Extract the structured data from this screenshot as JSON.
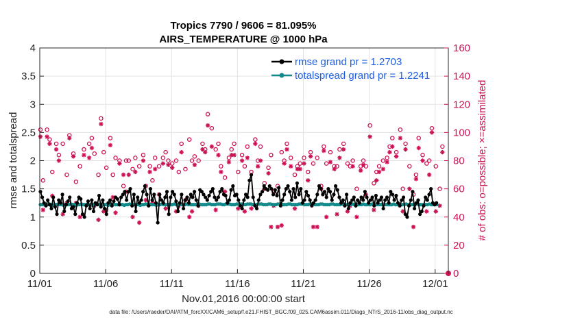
{
  "chart_data": {
    "type": "line",
    "title_line1": "Tropics 7790 / 9606 = 81.095%",
    "title_line2": "AIRS_TEMPERATURE @ 1000 hPa",
    "xlabel": "Nov.01,2016 00:00:00 start",
    "ylabel_left": "rmse and totalspread",
    "ylabel_right": "# of obs: o=possible; ×=assimilated",
    "xlim": [
      0,
      31
    ],
    "ylim_left": [
      0,
      4
    ],
    "ylim_right": [
      0,
      160
    ],
    "x_ticks": [
      0,
      5,
      10,
      15,
      20,
      25,
      30
    ],
    "x_tick_labels": [
      "11/01",
      "11/06",
      "11/11",
      "11/16",
      "11/21",
      "11/26",
      "12/01"
    ],
    "y_left_tick_labels": [
      "0",
      "0.5",
      "1",
      "1.5",
      "2",
      "2.5",
      "3",
      "3.5",
      "4"
    ],
    "y_right_tick_labels": [
      "0",
      "20",
      "40",
      "60",
      "80",
      "100",
      "120",
      "140",
      "160"
    ],
    "legend": [
      {
        "name": "rmse grand pr = 1.2703",
        "color": "#000000"
      },
      {
        "name": "totalspread grand pr = 1.2241",
        "color": "#138a8a"
      }
    ],
    "footer": "data file: /Users/raeder/DAI/ATM_forcXX/CAM6_setup/f.e21.FHIST_BGC.f09_025.CAM6assim.011/Diags_NTrS_2016-11/obs_diag_output.nc",
    "colors": {
      "rmse": "#000000",
      "spread": "#138a8a",
      "obs": "#cc1155",
      "legend_text": "#1f5fe0"
    },
    "rmse_series": [
      1.45,
      1.35,
      1.25,
      1.2,
      1.3,
      1.22,
      1.15,
      1.35,
      1.18,
      1.05,
      1.3,
      1.25,
      1.4,
      1.1,
      1.22,
      1.28,
      1.35,
      1.15,
      1.18,
      1.05,
      1.25,
      1.35,
      1.32,
      1.05,
      1.0,
      1.2,
      1.28,
      1.15,
      1.3,
      1.1,
      1.25,
      1.22,
      1.38,
      1.18,
      1.3,
      1.15,
      1.05,
      1.25,
      1.3,
      1.2,
      1.28,
      1.35,
      1.32,
      1.22,
      1.35,
      1.4,
      1.45,
      1.3,
      1.45,
      1.5,
      1.2,
      1.4,
      1.1,
      1.35,
      1.25,
      1.3,
      1.45,
      1.55,
      1.4,
      1.2,
      1.5,
      1.3,
      1.4,
      1.25,
      0.9,
      1.4,
      1.3,
      1.25,
      1.35,
      1.45,
      1.05,
      1.35,
      1.45,
      1.4,
      1.28,
      1.1,
      1.25,
      1.4,
      1.15,
      1.3,
      1.35,
      1.25,
      1.4,
      1.35,
      1.45,
      1.3,
      1.2,
      1.48,
      1.45,
      1.4,
      1.35,
      1.3,
      1.38,
      1.45,
      1.5,
      1.35,
      1.3,
      1.35,
      1.45,
      1.5,
      1.4,
      1.38,
      1.25,
      1.3,
      1.48,
      1.55,
      1.38,
      1.4,
      1.3,
      1.2,
      1.15,
      1.3,
      1.4,
      1.35,
      1.65,
      1.75,
      1.35,
      1.2,
      1.15,
      1.3,
      1.4,
      1.45,
      1.55,
      1.5,
      1.48,
      1.55,
      1.5,
      1.4,
      1.48,
      1.38,
      1.52,
      1.2,
      1.3,
      1.4,
      1.5,
      1.55,
      1.45,
      1.3,
      1.5,
      1.35,
      1.6,
      1.4,
      1.5,
      1.25,
      1.3,
      1.45,
      1.38,
      1.3,
      1.2,
      1.25,
      1.3,
      1.4,
      1.55,
      1.5,
      1.4,
      1.45,
      1.35,
      1.5,
      1.45,
      1.3,
      1.4,
      1.55,
      1.48,
      1.35,
      1.25,
      1.3,
      1.2,
      1.4,
      1.15,
      1.25,
      1.3,
      1.35,
      1.2,
      1.3,
      1.25,
      1.35,
      1.3,
      1.45,
      1.35,
      1.25,
      1.3,
      1.35,
      1.2,
      1.38,
      1.25,
      1.3,
      1.35,
      1.15,
      1.3,
      1.35,
      1.25,
      1.45,
      1.4,
      1.3,
      1.38,
      1.25,
      1.2,
      1.3,
      1.35,
      1.05,
      1.0,
      1.2,
      1.3,
      1.45,
      1.15,
      1.25,
      1.3,
      1.05,
      1.1,
      1.2,
      1.35,
      1.3,
      1.4,
      1.5,
      1.25,
      1.22,
      1.25
    ],
    "spread_series": [
      1.22,
      1.22,
      1.22,
      1.22,
      1.22,
      1.23,
      1.22,
      1.21,
      1.22,
      1.22,
      1.23,
      1.22,
      1.22,
      1.21,
      1.22,
      1.22,
      1.22,
      1.23,
      1.22,
      1.22,
      1.21,
      1.22,
      1.22,
      1.23,
      1.22,
      1.22,
      1.22,
      1.22,
      1.22,
      1.21,
      1.22,
      1.22,
      1.23,
      1.22,
      1.22,
      1.22,
      1.22,
      1.22,
      1.21,
      1.22,
      1.22,
      1.23,
      1.22,
      1.22,
      1.22,
      1.22,
      1.22,
      1.21,
      1.22,
      1.22,
      1.23,
      1.22,
      1.22,
      1.22,
      1.22,
      1.22,
      1.21,
      1.22,
      1.22,
      1.23,
      1.22,
      1.22,
      1.22,
      1.22,
      1.22,
      1.21,
      1.22,
      1.22,
      1.23,
      1.22,
      1.22,
      1.22,
      1.22,
      1.22,
      1.22,
      1.23,
      1.22,
      1.22,
      1.22,
      1.22,
      1.22,
      1.22,
      1.23,
      1.22,
      1.22,
      1.22,
      1.22,
      1.22,
      1.22,
      1.23,
      1.22,
      1.22,
      1.22,
      1.22,
      1.23,
      1.23,
      1.22,
      1.22,
      1.22,
      1.23,
      1.23,
      1.23,
      1.22,
      1.22,
      1.23,
      1.23,
      1.23,
      1.22,
      1.22,
      1.22,
      1.23,
      1.23,
      1.23,
      1.23,
      1.22,
      1.22,
      1.23,
      1.23,
      1.23,
      1.22,
      1.22,
      1.22,
      1.23,
      1.23,
      1.23,
      1.22,
      1.22,
      1.22,
      1.23,
      1.23,
      1.22,
      1.22,
      1.22,
      1.23,
      1.23,
      1.23,
      1.22,
      1.22,
      1.22,
      1.23,
      1.23,
      1.22,
      1.22,
      1.22,
      1.22,
      1.23,
      1.23,
      1.23,
      1.22,
      1.22,
      1.22,
      1.23,
      1.23,
      1.22,
      1.22,
      1.22,
      1.22,
      1.23,
      1.23,
      1.22,
      1.22,
      1.22,
      1.22,
      1.23,
      1.23,
      1.22,
      1.22,
      1.22,
      1.22,
      1.23,
      1.22,
      1.22,
      1.22,
      1.22,
      1.22,
      1.23,
      1.22,
      1.22,
      1.22,
      1.22,
      1.22,
      1.23,
      1.22,
      1.22,
      1.22,
      1.22,
      1.23,
      1.22,
      1.22,
      1.22,
      1.22,
      1.22,
      1.23,
      1.22,
      1.22,
      1.22,
      1.22,
      1.22,
      1.23,
      1.22,
      1.22,
      1.22,
      1.22,
      1.22,
      1.22,
      1.23,
      1.22,
      1.22,
      1.22,
      1.22,
      1.22,
      1.23,
      1.22,
      1.22,
      1.22,
      1.22,
      1.22,
      1.22,
      1.23,
      1.22,
      1.22,
      1.22,
      1.22
    ],
    "obs_possible": [
      [
        0.05,
        102
      ],
      [
        0.25,
        66
      ],
      [
        0.55,
        102
      ],
      [
        0.75,
        95
      ],
      [
        0.95,
        72
      ],
      [
        1.25,
        92
      ],
      [
        1.45,
        84
      ],
      [
        1.75,
        92
      ],
      [
        2.05,
        70
      ],
      [
        2.25,
        98
      ],
      [
        2.55,
        85
      ],
      [
        2.75,
        65
      ],
      [
        3.05,
        76
      ],
      [
        3.35,
        88
      ],
      [
        3.75,
        92
      ],
      [
        3.95,
        96
      ],
      [
        4.15,
        85
      ],
      [
        4.45,
        70
      ],
      [
        4.65,
        110
      ],
      [
        4.85,
        86
      ],
      [
        5.05,
        75
      ],
      [
        5.35,
        96
      ],
      [
        5.55,
        70
      ],
      [
        5.75,
        82
      ],
      [
        6.05,
        80
      ],
      [
        6.35,
        62
      ],
      [
        6.55,
        80
      ],
      [
        6.75,
        80
      ],
      [
        7.05,
        74
      ],
      [
        7.25,
        82
      ],
      [
        7.55,
        76
      ],
      [
        7.85,
        84
      ],
      [
        8.05,
        62
      ],
      [
        8.35,
        76
      ],
      [
        8.55,
        66
      ],
      [
        8.75,
        82
      ],
      [
        9.05,
        76
      ],
      [
        9.35,
        82
      ],
      [
        9.55,
        86
      ],
      [
        9.75,
        80
      ],
      [
        10.05,
        78
      ],
      [
        10.35,
        80
      ],
      [
        10.55,
        72
      ],
      [
        10.75,
        92
      ],
      [
        11.05,
        74
      ],
      [
        11.35,
        95
      ],
      [
        11.55,
        80
      ],
      [
        11.75,
        83
      ],
      [
        12.05,
        80
      ],
      [
        12.35,
        92
      ],
      [
        12.55,
        88
      ],
      [
        12.75,
        113
      ],
      [
        13.05,
        103
      ],
      [
        13.35,
        88
      ],
      [
        13.55,
        92
      ],
      [
        13.75,
        76
      ],
      [
        14.05,
        68
      ],
      [
        14.35,
        82
      ],
      [
        14.55,
        88
      ],
      [
        14.75,
        92
      ],
      [
        15.05,
        72
      ],
      [
        15.35,
        84
      ],
      [
        15.55,
        76
      ],
      [
        15.75,
        90
      ],
      [
        16.05,
        72
      ],
      [
        16.35,
        95
      ],
      [
        16.55,
        80
      ],
      [
        16.75,
        90
      ],
      [
        17.05,
        64
      ],
      [
        17.35,
        75
      ],
      [
        17.55,
        84
      ],
      [
        17.75,
        58
      ],
      [
        18.05,
        62
      ],
      [
        18.35,
        86
      ],
      [
        18.55,
        80
      ],
      [
        18.75,
        92
      ],
      [
        19.05,
        82
      ],
      [
        19.35,
        70
      ],
      [
        19.55,
        76
      ],
      [
        19.75,
        78
      ],
      [
        20.05,
        82
      ],
      [
        20.35,
        72
      ],
      [
        20.55,
        86
      ],
      [
        20.75,
        78
      ],
      [
        21.05,
        82
      ],
      [
        21.35,
        62
      ],
      [
        21.55,
        90
      ],
      [
        21.75,
        78
      ],
      [
        22.05,
        86
      ],
      [
        22.35,
        76
      ],
      [
        22.55,
        76
      ],
      [
        22.75,
        88
      ],
      [
        23.05,
        92
      ],
      [
        23.35,
        78
      ],
      [
        23.55,
        76
      ],
      [
        23.75,
        80
      ],
      [
        24.05,
        60
      ],
      [
        24.35,
        76
      ],
      [
        24.55,
        80
      ],
      [
        24.75,
        76
      ],
      [
        25.05,
        105
      ],
      [
        25.35,
        64
      ],
      [
        25.55,
        72
      ],
      [
        25.75,
        76
      ],
      [
        26.05,
        80
      ],
      [
        26.35,
        82
      ],
      [
        26.55,
        90
      ],
      [
        26.75,
        96
      ],
      [
        27.05,
        86
      ],
      [
        27.35,
        102
      ],
      [
        27.55,
        60
      ],
      [
        27.75,
        92
      ],
      [
        28.05,
        76
      ],
      [
        28.35,
        56
      ],
      [
        28.55,
        70
      ],
      [
        28.75,
        96
      ],
      [
        29.05,
        84
      ],
      [
        29.35,
        78
      ],
      [
        29.55,
        80
      ],
      [
        29.75,
        103
      ],
      [
        30.05,
        76
      ],
      [
        30.35,
        60
      ],
      [
        30.55,
        90
      ]
    ],
    "obs_assimilated": [
      [
        0.05,
        97
      ],
      [
        0.25,
        45
      ],
      [
        0.55,
        97
      ],
      [
        0.75,
        92
      ],
      [
        0.95,
        55
      ],
      [
        1.25,
        88
      ],
      [
        1.45,
        80
      ],
      [
        1.75,
        42
      ],
      [
        2.05,
        50
      ],
      [
        2.25,
        96
      ],
      [
        2.55,
        83
      ],
      [
        2.75,
        50
      ],
      [
        3.05,
        40
      ],
      [
        3.35,
        84
      ],
      [
        3.75,
        82
      ],
      [
        3.95,
        89
      ],
      [
        4.15,
        48
      ],
      [
        4.45,
        38
      ],
      [
        4.65,
        106
      ],
      [
        4.85,
        44
      ],
      [
        5.05,
        45
      ],
      [
        5.35,
        91
      ],
      [
        5.55,
        54
      ],
      [
        5.75,
        43
      ],
      [
        6.05,
        78
      ],
      [
        6.35,
        70
      ],
      [
        6.55,
        58
      ],
      [
        6.75,
        70
      ],
      [
        7.05,
        40
      ],
      [
        7.25,
        72
      ],
      [
        7.55,
        36
      ],
      [
        7.85,
        80
      ],
      [
        8.05,
        52
      ],
      [
        8.35,
        72
      ],
      [
        8.55,
        50
      ],
      [
        8.75,
        74
      ],
      [
        9.05,
        56
      ],
      [
        9.35,
        78
      ],
      [
        9.55,
        46
      ],
      [
        9.75,
        77
      ],
      [
        10.05,
        75
      ],
      [
        10.35,
        44
      ],
      [
        10.55,
        48
      ],
      [
        10.75,
        86
      ],
      [
        11.05,
        52
      ],
      [
        11.35,
        40
      ],
      [
        11.55,
        44
      ],
      [
        11.75,
        77
      ],
      [
        12.05,
        48
      ],
      [
        12.35,
        88
      ],
      [
        12.55,
        86
      ],
      [
        12.75,
        105
      ],
      [
        13.05,
        90
      ],
      [
        13.35,
        45
      ],
      [
        13.55,
        84
      ],
      [
        13.75,
        72
      ],
      [
        14.05,
        58
      ],
      [
        14.35,
        79
      ],
      [
        14.55,
        84
      ],
      [
        14.75,
        84
      ],
      [
        15.05,
        46
      ],
      [
        15.35,
        80
      ],
      [
        15.55,
        44
      ],
      [
        15.75,
        82
      ],
      [
        16.05,
        46
      ],
      [
        16.35,
        92
      ],
      [
        16.55,
        76
      ],
      [
        16.75,
        80
      ],
      [
        17.05,
        60
      ],
      [
        17.35,
        71
      ],
      [
        17.55,
        33
      ],
      [
        17.75,
        48
      ],
      [
        18.05,
        33
      ],
      [
        18.35,
        34
      ],
      [
        18.55,
        78
      ],
      [
        18.75,
        88
      ],
      [
        19.05,
        76
      ],
      [
        19.35,
        46
      ],
      [
        19.55,
        74
      ],
      [
        19.75,
        74
      ],
      [
        20.05,
        78
      ],
      [
        20.35,
        66
      ],
      [
        20.55,
        83
      ],
      [
        20.75,
        33
      ],
      [
        21.05,
        33
      ],
      [
        21.35,
        60
      ],
      [
        21.55,
        87
      ],
      [
        21.75,
        40
      ],
      [
        22.05,
        79
      ],
      [
        22.35,
        74
      ],
      [
        22.55,
        42
      ],
      [
        22.75,
        82
      ],
      [
        23.05,
        88
      ],
      [
        23.35,
        44
      ],
      [
        23.55,
        48
      ],
      [
        23.75,
        76
      ],
      [
        24.05,
        40
      ],
      [
        24.35,
        73
      ],
      [
        24.55,
        77
      ],
      [
        24.75,
        56
      ],
      [
        25.05,
        97
      ],
      [
        25.35,
        45
      ],
      [
        25.55,
        66
      ],
      [
        25.75,
        72
      ],
      [
        26.05,
        74
      ],
      [
        26.35,
        79
      ],
      [
        26.55,
        86
      ],
      [
        26.75,
        90
      ],
      [
        27.05,
        83
      ],
      [
        27.35,
        96
      ],
      [
        27.55,
        44
      ],
      [
        27.75,
        88
      ],
      [
        28.05,
        60
      ],
      [
        28.35,
        33
      ],
      [
        28.55,
        67
      ],
      [
        28.75,
        89
      ],
      [
        29.05,
        80
      ],
      [
        29.35,
        44
      ],
      [
        29.55,
        70
      ],
      [
        29.75,
        100
      ],
      [
        30.05,
        44
      ],
      [
        30.35,
        48
      ],
      [
        30.55,
        86
      ]
    ]
  }
}
